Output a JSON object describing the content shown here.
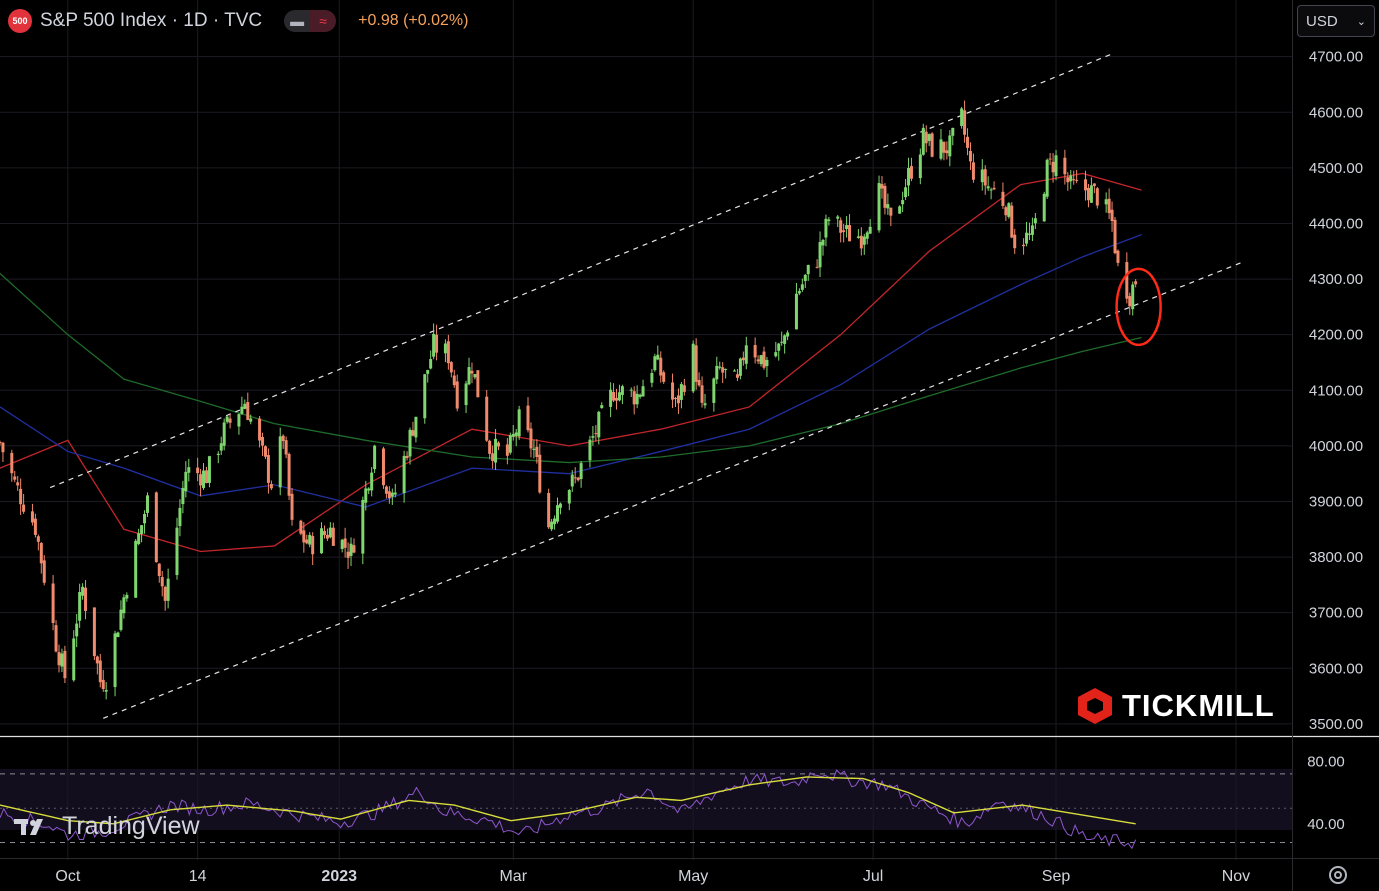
{
  "header": {
    "badge": "500",
    "title": "S&P 500 Index · 1D · TVC",
    "change": "+0.98 (+0.02%)"
  },
  "currency": {
    "value": "USD"
  },
  "brand": {
    "logo": "TICKMILL",
    "watermark": "TradingView"
  },
  "colors": {
    "bull": "#26a69a",
    "bear": "#ef5350",
    "up_candle": "#7fd66f",
    "down_candle": "#f08a6c",
    "ma_red": "#c2262b",
    "ma_blue": "#1f2f9e",
    "ma_green": "#1e6b2a",
    "rsi": "#8e56cc",
    "rsi_ma": "#d7dc3c",
    "highlight": "#ff2a17"
  },
  "chart_data": [
    {
      "type": "candlestick",
      "y_tick_labels": [
        "4700.00",
        "4600.00",
        "4500.00",
        "4400.00",
        "4300.00",
        "4200.00",
        "4100.00",
        "4000.00",
        "3900.00",
        "3800.00",
        "3700.00",
        "3600.00",
        "3500.00"
      ],
      "x_tick_labels": [
        "Oct",
        "14",
        "2023",
        "Mar",
        "May",
        "Jul",
        "Sep",
        "Nov"
      ],
      "ylim": [
        3480,
        4730
      ],
      "xlim": [
        "2022-09-08",
        "2023-11-20"
      ],
      "scale": "linear",
      "grid": true,
      "x_ticks": [
        "2022-10-01",
        "2022-11-14",
        "2023-01-01",
        "2023-03-01",
        "2023-05-01",
        "2023-07-01",
        "2023-09-01",
        "2023-11-01"
      ],
      "close_series": [
        [
          "2022-09-08",
          4006
        ],
        [
          "2022-09-13",
          3932
        ],
        [
          "2022-09-20",
          3855
        ],
        [
          "2022-09-27",
          3647
        ],
        [
          "2022-09-30",
          3585
        ],
        [
          "2022-10-06",
          3744
        ],
        [
          "2022-10-12",
          3577
        ],
        [
          "2022-10-14",
          3583
        ],
        [
          "2022-10-21",
          3752
        ],
        [
          "2022-10-28",
          3901
        ],
        [
          "2022-11-03",
          3720
        ],
        [
          "2022-11-10",
          3956
        ],
        [
          "2022-11-17",
          3947
        ],
        [
          "2022-11-23",
          4027
        ],
        [
          "2022-11-30",
          4080
        ],
        [
          "2022-12-05",
          3999
        ],
        [
          "2022-12-09",
          3934
        ],
        [
          "2022-12-13",
          4019
        ],
        [
          "2022-12-16",
          3852
        ],
        [
          "2022-12-22",
          3822
        ],
        [
          "2022-12-29",
          3849
        ],
        [
          "2023-01-05",
          3808
        ],
        [
          "2023-01-10",
          3919
        ],
        [
          "2023-01-13",
          3999
        ],
        [
          "2023-01-19",
          3898
        ],
        [
          "2023-01-25",
          4016
        ],
        [
          "2023-02-02",
          4180
        ],
        [
          "2023-02-07",
          4164
        ],
        [
          "2023-02-10",
          4090
        ],
        [
          "2023-02-15",
          4147
        ],
        [
          "2023-02-21",
          3997
        ],
        [
          "2023-02-27",
          3982
        ],
        [
          "2023-03-03",
          4045
        ],
        [
          "2023-03-08",
          3992
        ],
        [
          "2023-03-13",
          3855
        ],
        [
          "2023-03-17",
          3916
        ],
        [
          "2023-03-22",
          3937
        ],
        [
          "2023-03-29",
          4027
        ],
        [
          "2023-04-04",
          4100
        ],
        [
          "2023-04-12",
          4091
        ],
        [
          "2023-04-18",
          4154
        ],
        [
          "2023-04-25",
          4071
        ],
        [
          "2023-05-01",
          4167
        ],
        [
          "2023-05-04",
          4061
        ],
        [
          "2023-05-10",
          4137
        ],
        [
          "2023-05-16",
          4109
        ],
        [
          "2023-05-19",
          4191
        ],
        [
          "2023-05-25",
          4151
        ],
        [
          "2023-05-31",
          4179
        ],
        [
          "2023-06-05",
          4273
        ],
        [
          "2023-06-12",
          4338
        ],
        [
          "2023-06-16",
          4409
        ],
        [
          "2023-06-22",
          4381
        ],
        [
          "2023-06-27",
          4378
        ],
        [
          "2023-07-03",
          4455
        ],
        [
          "2023-07-07",
          4398
        ],
        [
          "2023-07-12",
          4472
        ],
        [
          "2023-07-18",
          4554
        ],
        [
          "2023-07-21",
          4536
        ],
        [
          "2023-07-27",
          4537
        ],
        [
          "2023-07-31",
          4588
        ],
        [
          "2023-08-03",
          4501
        ],
        [
          "2023-08-09",
          4467
        ],
        [
          "2023-08-15",
          4437
        ],
        [
          "2023-08-18",
          4370
        ],
        [
          "2023-08-24",
          4376
        ],
        [
          "2023-08-29",
          4497
        ],
        [
          "2023-09-01",
          4515
        ],
        [
          "2023-09-06",
          4465
        ],
        [
          "2023-09-12",
          4461
        ],
        [
          "2023-09-15",
          4450
        ],
        [
          "2023-09-20",
          4402
        ],
        [
          "2023-09-22",
          4320
        ],
        [
          "2023-09-26",
          4273
        ],
        [
          "2023-09-28",
          4299
        ]
      ],
      "moving_averages": [
        {
          "color": "ma_red",
          "values": [
            [
              "2022-09-08",
              3960
            ],
            [
              "2022-10-01",
              4010
            ],
            [
              "2022-10-20",
              3850
            ],
            [
              "2022-11-15",
              3810
            ],
            [
              "2022-12-10",
              3820
            ],
            [
              "2023-01-10",
              3930
            ],
            [
              "2023-02-15",
              4030
            ],
            [
              "2023-03-20",
              4000
            ],
            [
              "2023-04-20",
              4030
            ],
            [
              "2023-05-20",
              4070
            ],
            [
              "2023-06-20",
              4200
            ],
            [
              "2023-07-20",
              4350
            ],
            [
              "2023-08-20",
              4470
            ],
            [
              "2023-09-10",
              4490
            ],
            [
              "2023-09-30",
              4460
            ]
          ]
        },
        {
          "color": "ma_blue",
          "values": [
            [
              "2022-09-08",
              4070
            ],
            [
              "2022-10-01",
              3990
            ],
            [
              "2022-10-20",
              3960
            ],
            [
              "2022-11-15",
              3910
            ],
            [
              "2022-12-10",
              3930
            ],
            [
              "2023-01-10",
              3890
            ],
            [
              "2023-02-15",
              3960
            ],
            [
              "2023-03-20",
              3950
            ],
            [
              "2023-04-20",
              3990
            ],
            [
              "2023-05-20",
              4030
            ],
            [
              "2023-06-20",
              4110
            ],
            [
              "2023-07-20",
              4210
            ],
            [
              "2023-08-20",
              4290
            ],
            [
              "2023-09-10",
              4340
            ],
            [
              "2023-09-30",
              4380
            ]
          ]
        },
        {
          "color": "ma_green",
          "values": [
            [
              "2022-09-08",
              4310
            ],
            [
              "2022-10-01",
              4200
            ],
            [
              "2022-10-20",
              4120
            ],
            [
              "2022-11-15",
              4080
            ],
            [
              "2022-12-10",
              4040
            ],
            [
              "2023-01-10",
              4010
            ],
            [
              "2023-02-15",
              3980
            ],
            [
              "2023-03-20",
              3970
            ],
            [
              "2023-04-20",
              3980
            ],
            [
              "2023-05-20",
              4000
            ],
            [
              "2023-06-20",
              4040
            ],
            [
              "2023-07-20",
              4090
            ],
            [
              "2023-08-20",
              4140
            ],
            [
              "2023-09-10",
              4170
            ],
            [
              "2023-09-30",
              4195
            ]
          ]
        }
      ],
      "channel": {
        "upper": [
          [
            "2022-09-25",
            3925
          ],
          [
            "2023-09-20",
            4705
          ]
        ],
        "lower": [
          [
            "2022-10-13",
            3510
          ],
          [
            "2023-11-03",
            4330
          ]
        ]
      },
      "highlight_ellipse": {
        "center": [
          "2023-09-29",
          4250
        ],
        "note": "red circle around last candles"
      }
    },
    {
      "type": "line",
      "y_tick_labels": [
        "80.00",
        "40.00"
      ],
      "ylim": [
        20,
        95
      ],
      "bands": [
        72,
        28
      ],
      "series": [
        {
          "color": "rsi",
          "values": [
            [
              0,
              47
            ],
            [
              0.04,
              40
            ],
            [
              0.06,
              33
            ],
            [
              0.09,
              35
            ],
            [
              0.12,
              43
            ],
            [
              0.15,
              52
            ],
            [
              0.18,
              49
            ],
            [
              0.22,
              53
            ],
            [
              0.26,
              46
            ],
            [
              0.3,
              41
            ],
            [
              0.33,
              47
            ],
            [
              0.37,
              61
            ],
            [
              0.39,
              48
            ],
            [
              0.43,
              42
            ],
            [
              0.46,
              33
            ],
            [
              0.5,
              46
            ],
            [
              0.53,
              50
            ],
            [
              0.57,
              62
            ],
            [
              0.6,
              47
            ],
            [
              0.63,
              60
            ],
            [
              0.66,
              68
            ],
            [
              0.7,
              66
            ],
            [
              0.72,
              74
            ],
            [
              0.75,
              68
            ],
            [
              0.78,
              65
            ],
            [
              0.81,
              53
            ],
            [
              0.85,
              40
            ],
            [
              0.88,
              55
            ],
            [
              0.92,
              45
            ],
            [
              0.96,
              30
            ],
            [
              1,
              28
            ]
          ]
        },
        {
          "color": "rsi_ma",
          "values": [
            [
              0,
              52
            ],
            [
              0.06,
              42
            ],
            [
              0.1,
              40
            ],
            [
              0.15,
              49
            ],
            [
              0.2,
              52
            ],
            [
              0.26,
              48
            ],
            [
              0.3,
              43
            ],
            [
              0.36,
              55
            ],
            [
              0.4,
              52
            ],
            [
              0.45,
              42
            ],
            [
              0.5,
              47
            ],
            [
              0.56,
              57
            ],
            [
              0.6,
              55
            ],
            [
              0.66,
              65
            ],
            [
              0.71,
              70
            ],
            [
              0.76,
              69
            ],
            [
              0.8,
              60
            ],
            [
              0.84,
              47
            ],
            [
              0.9,
              52
            ],
            [
              0.95,
              46
            ],
            [
              1,
              40
            ]
          ]
        }
      ]
    }
  ]
}
